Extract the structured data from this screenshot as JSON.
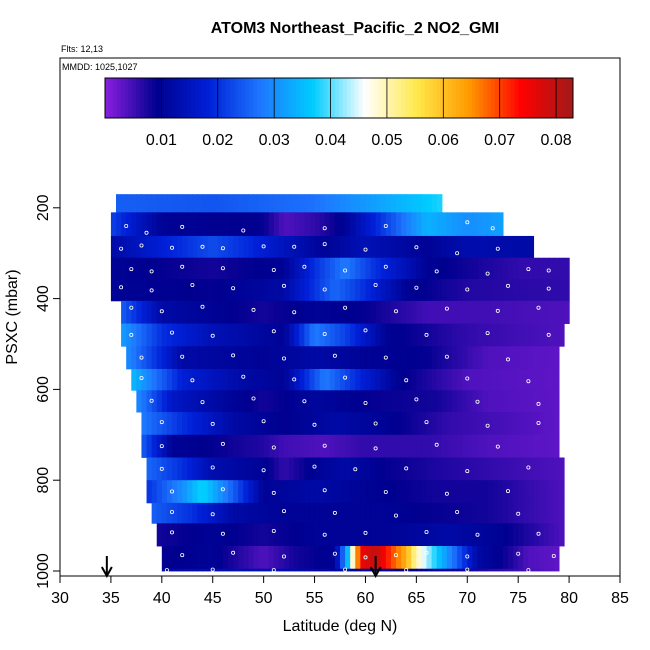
{
  "chart_data": {
    "type": "heatmap",
    "title": "ATOM3 Northeast_Pacific_2 NO2_GMI",
    "flights_label": "Flts: 12,13",
    "dates_label": "MMDD: 1025,1027",
    "xlabel": "Latitude (deg N)",
    "ylabel": "PSXC (mbar)",
    "xlim": [
      30,
      85
    ],
    "ylim": [
      1000,
      0
    ],
    "x_ticks": [
      "30",
      "35",
      "40",
      "45",
      "50",
      "55",
      "60",
      "65",
      "70",
      "75",
      "80",
      "85"
    ],
    "y_ticks": [
      "200",
      "400",
      "600",
      "800",
      "1000"
    ],
    "grid": false,
    "colorbar": {
      "placement": "top-inside",
      "range": [
        0.0,
        0.083
      ],
      "ticks": [
        "0.01",
        "0.02",
        "0.03",
        "0.04",
        "0.05",
        "0.06",
        "0.07",
        "0.08"
      ],
      "colors": [
        "#8b1fe0",
        "#00008f",
        "#0020d8",
        "#1e78ff",
        "#00ccff",
        "#ffffff",
        "#ffe84a",
        "#ff9a00",
        "#ff0000",
        "#a01a1a"
      ]
    },
    "rows": [
      {
        "p_top": 170,
        "p_bot": 210,
        "lat_min": 35.5,
        "lat_max": 67.5,
        "anchors": [
          [
            35.5,
            0.025
          ],
          [
            45,
            0.024
          ],
          [
            55,
            0.027
          ],
          [
            62,
            0.033
          ],
          [
            67.5,
            0.038
          ]
        ]
      },
      {
        "p_top": 210,
        "p_bot": 262,
        "lat_min": 35,
        "lat_max": 73.5,
        "anchors": [
          [
            35,
            0.022
          ],
          [
            40,
            0.01
          ],
          [
            50,
            0.009
          ],
          [
            52,
            0.004
          ],
          [
            55,
            0.006
          ],
          [
            58,
            0.01
          ],
          [
            62,
            0.022
          ],
          [
            66,
            0.034
          ],
          [
            70,
            0.03
          ],
          [
            73.5,
            0.032
          ]
        ]
      },
      {
        "p_top": 262,
        "p_bot": 310,
        "lat_min": 35,
        "lat_max": 76.5,
        "anchors": [
          [
            35,
            0.012
          ],
          [
            40,
            0.018
          ],
          [
            45,
            0.023
          ],
          [
            48,
            0.02
          ],
          [
            52,
            0.015
          ],
          [
            56,
            0.01
          ],
          [
            60,
            0.014
          ],
          [
            66,
            0.01
          ],
          [
            70,
            0.013
          ],
          [
            76.5,
            0.012
          ]
        ]
      },
      {
        "p_top": 310,
        "p_bot": 357,
        "lat_min": 35,
        "lat_max": 80,
        "anchors": [
          [
            35,
            0.01
          ],
          [
            45,
            0.008
          ],
          [
            52,
            0.01
          ],
          [
            55,
            0.02
          ],
          [
            58,
            0.028
          ],
          [
            61,
            0.02
          ],
          [
            66,
            0.01
          ],
          [
            75,
            0.006
          ],
          [
            80,
            0.006
          ]
        ]
      },
      {
        "p_top": 357,
        "p_bot": 405,
        "lat_min": 35,
        "lat_max": 80,
        "anchors": [
          [
            35,
            0.01
          ],
          [
            45,
            0.009
          ],
          [
            52,
            0.012
          ],
          [
            57,
            0.026
          ],
          [
            59,
            0.022
          ],
          [
            64,
            0.01
          ],
          [
            70,
            0.007
          ],
          [
            80,
            0.006
          ]
        ]
      },
      {
        "p_top": 405,
        "p_bot": 455,
        "lat_min": 36,
        "lat_max": 80,
        "anchors": [
          [
            36,
            0.025
          ],
          [
            40,
            0.012
          ],
          [
            45,
            0.01
          ],
          [
            50,
            0.008
          ],
          [
            55,
            0.01
          ],
          [
            60,
            0.009
          ],
          [
            66,
            0.005
          ],
          [
            72,
            0.005
          ],
          [
            80,
            0.004
          ]
        ]
      },
      {
        "p_top": 455,
        "p_bot": 505,
        "lat_min": 36,
        "lat_max": 79.5,
        "anchors": [
          [
            36,
            0.032
          ],
          [
            40,
            0.02
          ],
          [
            45,
            0.014
          ],
          [
            52,
            0.01
          ],
          [
            55,
            0.028
          ],
          [
            58,
            0.022
          ],
          [
            62,
            0.01
          ],
          [
            70,
            0.006
          ],
          [
            79.5,
            0.004
          ]
        ]
      },
      {
        "p_top": 505,
        "p_bot": 555,
        "lat_min": 36.5,
        "lat_max": 79,
        "anchors": [
          [
            36.5,
            0.03
          ],
          [
            42,
            0.012
          ],
          [
            50,
            0.01
          ],
          [
            55,
            0.012
          ],
          [
            60,
            0.01
          ],
          [
            66,
            0.009
          ],
          [
            72,
            0.004
          ],
          [
            79,
            0.003
          ]
        ]
      },
      {
        "p_top": 555,
        "p_bot": 602,
        "lat_min": 37,
        "lat_max": 79,
        "anchors": [
          [
            37,
            0.035
          ],
          [
            42,
            0.018
          ],
          [
            48,
            0.012
          ],
          [
            52,
            0.01
          ],
          [
            56,
            0.028
          ],
          [
            59,
            0.02
          ],
          [
            63,
            0.01
          ],
          [
            70,
            0.004
          ],
          [
            79,
            0.003
          ]
        ]
      },
      {
        "p_top": 602,
        "p_bot": 650,
        "lat_min": 37.5,
        "lat_max": 79,
        "anchors": [
          [
            37.5,
            0.03
          ],
          [
            41,
            0.016
          ],
          [
            45,
            0.012
          ],
          [
            50,
            0.008
          ],
          [
            55,
            0.011
          ],
          [
            60,
            0.009
          ],
          [
            67,
            0.008
          ],
          [
            72,
            0.004
          ],
          [
            79,
            0.003
          ]
        ]
      },
      {
        "p_top": 650,
        "p_bot": 700,
        "lat_min": 38,
        "lat_max": 79,
        "anchors": [
          [
            38,
            0.028
          ],
          [
            42,
            0.02
          ],
          [
            47,
            0.012
          ],
          [
            52,
            0.009
          ],
          [
            57,
            0.012
          ],
          [
            62,
            0.01
          ],
          [
            68,
            0.006
          ],
          [
            79,
            0.003
          ]
        ]
      },
      {
        "p_top": 700,
        "p_bot": 750,
        "lat_min": 38,
        "lat_max": 79,
        "anchors": [
          [
            38,
            0.025
          ],
          [
            41,
            0.01
          ],
          [
            45,
            0.009
          ],
          [
            50,
            0.007
          ],
          [
            52,
            0.005
          ],
          [
            56,
            0.004
          ],
          [
            60,
            0.006
          ],
          [
            66,
            0.006
          ],
          [
            72,
            0.004
          ],
          [
            79,
            0.003
          ]
        ]
      },
      {
        "p_top": 750,
        "p_bot": 800,
        "lat_min": 38.5,
        "lat_max": 79.5,
        "anchors": [
          [
            38.5,
            0.026
          ],
          [
            42,
            0.02
          ],
          [
            45,
            0.013
          ],
          [
            50,
            0.01
          ],
          [
            52,
            0.006
          ],
          [
            55,
            0.01
          ],
          [
            58,
            0.012
          ],
          [
            62,
            0.009
          ],
          [
            68,
            0.007
          ],
          [
            79.5,
            0.004
          ]
        ]
      },
      {
        "p_top": 800,
        "p_bot": 850,
        "lat_min": 38.5,
        "lat_max": 79.5,
        "anchors": [
          [
            38.5,
            0.02
          ],
          [
            42,
            0.03
          ],
          [
            44,
            0.038
          ],
          [
            47,
            0.025
          ],
          [
            50,
            0.01
          ],
          [
            55,
            0.012
          ],
          [
            60,
            0.01
          ],
          [
            67,
            0.008
          ],
          [
            72,
            0.008
          ],
          [
            79.5,
            0.004
          ]
        ]
      },
      {
        "p_top": 850,
        "p_bot": 895,
        "lat_min": 39,
        "lat_max": 79.5,
        "anchors": [
          [
            39,
            0.025
          ],
          [
            43,
            0.02
          ],
          [
            47,
            0.012
          ],
          [
            52,
            0.01
          ],
          [
            57,
            0.01
          ],
          [
            62,
            0.01
          ],
          [
            66,
            0.009
          ],
          [
            72,
            0.008
          ],
          [
            79.5,
            0.004
          ]
        ]
      },
      {
        "p_top": 895,
        "p_bot": 945,
        "lat_min": 39.5,
        "lat_max": 79.5,
        "anchors": [
          [
            39.5,
            0.008
          ],
          [
            45,
            0.01
          ],
          [
            50,
            0.008
          ],
          [
            55,
            0.01
          ],
          [
            62,
            0.01
          ],
          [
            68,
            0.012
          ],
          [
            73,
            0.01
          ],
          [
            79.5,
            0.004
          ]
        ]
      },
      {
        "p_top": 945,
        "p_bot": 995,
        "lat_min": 40,
        "lat_max": 79,
        "anchors": [
          [
            40,
            0.009
          ],
          [
            45,
            0.01
          ],
          [
            50,
            0.004
          ],
          [
            53,
            0.008
          ],
          [
            57,
            0.01
          ],
          [
            58.5,
            0.04
          ],
          [
            59.5,
            0.075
          ],
          [
            61,
            0.08
          ],
          [
            62.5,
            0.07
          ],
          [
            64,
            0.062
          ],
          [
            65,
            0.05
          ],
          [
            66.5,
            0.04
          ],
          [
            68.5,
            0.028
          ],
          [
            71,
            0.012
          ],
          [
            74,
            0.008
          ],
          [
            76,
            0.004
          ],
          [
            79,
            0.003
          ]
        ]
      },
      {
        "p_top": 995,
        "p_bot": 1000,
        "lat_min": 40,
        "lat_max": 79,
        "anchors": [
          [
            40,
            0.012
          ],
          [
            50,
            0.014
          ],
          [
            60,
            0.01
          ],
          [
            70,
            0.008
          ],
          [
            79,
            0.003
          ]
        ]
      }
    ],
    "sample_points": [
      [
        36.5,
        240
      ],
      [
        38.5,
        255
      ],
      [
        42,
        242
      ],
      [
        48,
        250
      ],
      [
        56,
        245
      ],
      [
        62,
        240
      ],
      [
        70,
        232
      ],
      [
        72.5,
        245
      ],
      [
        36,
        290
      ],
      [
        38,
        283
      ],
      [
        41,
        288
      ],
      [
        44,
        286
      ],
      [
        46,
        289
      ],
      [
        50,
        285
      ],
      [
        53,
        286
      ],
      [
        56,
        280
      ],
      [
        60,
        292
      ],
      [
        65,
        287
      ],
      [
        69,
        300
      ],
      [
        73,
        290
      ],
      [
        37,
        335
      ],
      [
        39,
        340
      ],
      [
        42,
        330
      ],
      [
        46,
        333
      ],
      [
        51,
        337
      ],
      [
        54,
        330
      ],
      [
        58,
        338
      ],
      [
        62,
        330
      ],
      [
        67,
        340
      ],
      [
        72,
        345
      ],
      [
        76,
        335
      ],
      [
        78,
        338
      ],
      [
        36,
        375
      ],
      [
        39,
        382
      ],
      [
        43,
        370
      ],
      [
        47,
        377
      ],
      [
        52,
        372
      ],
      [
        56,
        380
      ],
      [
        61,
        370
      ],
      [
        65,
        376
      ],
      [
        70,
        380
      ],
      [
        74,
        372
      ],
      [
        78,
        378
      ],
      [
        37,
        420
      ],
      [
        40,
        428
      ],
      [
        44,
        418
      ],
      [
        49,
        425
      ],
      [
        53,
        430
      ],
      [
        58,
        420
      ],
      [
        63,
        428
      ],
      [
        68,
        422
      ],
      [
        73,
        427
      ],
      [
        77,
        420
      ],
      [
        37,
        480
      ],
      [
        41,
        475
      ],
      [
        45,
        482
      ],
      [
        51,
        472
      ],
      [
        56,
        478
      ],
      [
        60,
        470
      ],
      [
        66,
        480
      ],
      [
        72,
        476
      ],
      [
        78,
        480
      ],
      [
        38,
        530
      ],
      [
        42,
        528
      ],
      [
        47,
        525
      ],
      [
        52,
        532
      ],
      [
        57,
        526
      ],
      [
        62,
        530
      ],
      [
        68,
        528
      ],
      [
        74,
        534
      ],
      [
        38,
        575
      ],
      [
        43,
        580
      ],
      [
        48,
        572
      ],
      [
        53,
        578
      ],
      [
        58,
        574
      ],
      [
        64,
        580
      ],
      [
        70,
        576
      ],
      [
        76,
        582
      ],
      [
        39,
        625
      ],
      [
        44,
        628
      ],
      [
        49,
        620
      ],
      [
        54,
        626
      ],
      [
        60,
        630
      ],
      [
        65,
        622
      ],
      [
        71,
        627
      ],
      [
        77,
        632
      ],
      [
        40,
        672
      ],
      [
        45,
        676
      ],
      [
        50,
        670
      ],
      [
        55,
        678
      ],
      [
        61,
        675
      ],
      [
        66,
        672
      ],
      [
        72,
        680
      ],
      [
        77,
        674
      ],
      [
        40,
        725
      ],
      [
        46,
        720
      ],
      [
        51,
        728
      ],
      [
        56,
        724
      ],
      [
        61,
        730
      ],
      [
        67,
        722
      ],
      [
        73,
        726
      ],
      [
        40,
        775
      ],
      [
        45,
        772
      ],
      [
        50,
        778
      ],
      [
        55,
        770
      ],
      [
        59,
        776
      ],
      [
        64,
        774
      ],
      [
        70,
        780
      ],
      [
        76,
        772
      ],
      [
        41,
        825
      ],
      [
        46,
        820
      ],
      [
        51,
        828
      ],
      [
        56,
        822
      ],
      [
        62,
        826
      ],
      [
        68,
        830
      ],
      [
        74,
        824
      ],
      [
        41,
        870
      ],
      [
        45,
        875
      ],
      [
        52,
        868
      ],
      [
        57,
        872
      ],
      [
        63,
        878
      ],
      [
        69,
        870
      ],
      [
        75,
        874
      ],
      [
        41,
        915
      ],
      [
        46,
        918
      ],
      [
        51,
        912
      ],
      [
        56,
        920
      ],
      [
        60,
        916
      ],
      [
        66,
        914
      ],
      [
        71,
        920
      ],
      [
        77,
        918
      ],
      [
        42,
        965
      ],
      [
        47,
        960
      ],
      [
        52,
        968
      ],
      [
        57,
        962
      ],
      [
        60,
        970
      ],
      [
        63,
        965
      ],
      [
        66,
        960
      ],
      [
        70,
        968
      ],
      [
        75,
        962
      ],
      [
        78.5,
        967
      ],
      [
        40.5,
        998
      ],
      [
        45,
        997
      ],
      [
        51,
        998
      ],
      [
        58,
        997
      ],
      [
        64,
        998
      ],
      [
        70,
        997
      ],
      [
        76,
        998
      ]
    ],
    "markers": [
      {
        "type": "arrow-down",
        "lat": 34.6
      },
      {
        "type": "arrow-down",
        "lat": 61
      }
    ]
  }
}
